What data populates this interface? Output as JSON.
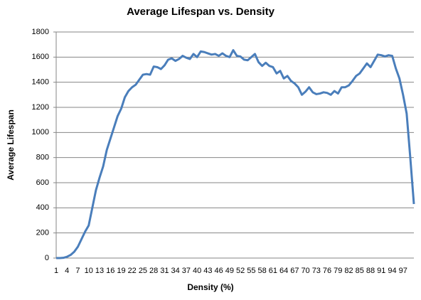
{
  "chart_data": {
    "type": "line",
    "title": "Average Lifespan vs. Density",
    "x_label": "Density (%)",
    "y_label": "Average Lifespan",
    "categories": [
      1,
      null,
      null,
      4,
      null,
      null,
      7,
      null,
      null,
      10,
      null,
      null,
      13,
      null,
      null,
      16,
      null,
      null,
      19,
      null,
      null,
      22,
      null,
      null,
      25,
      null,
      null,
      28,
      null,
      null,
      31,
      null,
      null,
      34,
      null,
      null,
      37,
      null,
      null,
      40,
      null,
      null,
      43,
      null,
      null,
      46,
      null,
      null,
      49,
      null,
      null,
      52,
      null,
      null,
      55,
      null,
      null,
      58,
      null,
      null,
      61,
      null,
      null,
      64,
      null,
      null,
      67,
      null,
      null,
      70,
      null,
      null,
      73,
      null,
      null,
      76,
      null,
      null,
      79,
      null,
      null,
      82,
      null,
      null,
      85,
      null,
      null,
      88,
      null,
      null,
      91,
      null,
      null,
      94,
      null,
      null,
      97,
      null,
      null,
      null
    ],
    "series": [
      {
        "name": "Average Lifespan",
        "color": "#4a7ebb",
        "values": [
          0,
          0,
          2,
          10,
          25,
          50,
          90,
          150,
          210,
          260,
          400,
          540,
          640,
          730,
          860,
          950,
          1040,
          1130,
          1190,
          1280,
          1330,
          1360,
          1380,
          1420,
          1460,
          1465,
          1460,
          1525,
          1520,
          1505,
          1535,
          1580,
          1590,
          1570,
          1585,
          1610,
          1595,
          1585,
          1625,
          1600,
          1645,
          1640,
          1630,
          1620,
          1625,
          1610,
          1630,
          1610,
          1600,
          1655,
          1610,
          1605,
          1580,
          1575,
          1600,
          1625,
          1560,
          1530,
          1555,
          1530,
          1520,
          1470,
          1490,
          1430,
          1450,
          1410,
          1390,
          1360,
          1300,
          1325,
          1360,
          1320,
          1305,
          1310,
          1320,
          1315,
          1300,
          1330,
          1310,
          1360,
          1360,
          1375,
          1410,
          1450,
          1470,
          1510,
          1550,
          1520,
          1570,
          1620,
          1615,
          1605,
          1615,
          1610,
          1510,
          1430,
          1300,
          1150,
          800,
          430
        ]
      }
    ],
    "ylim": [
      0,
      1800
    ],
    "yticks": [
      0,
      200,
      400,
      600,
      800,
      1000,
      1200,
      1400,
      1600,
      1800
    ],
    "grid": true,
    "legend": false
  }
}
